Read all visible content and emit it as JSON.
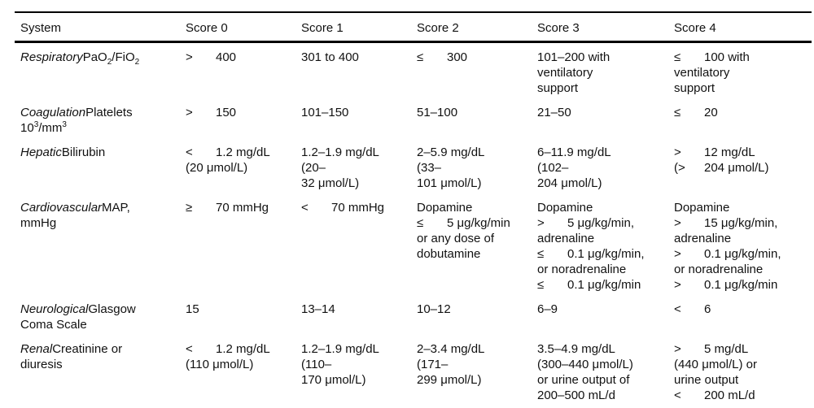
{
  "colors": {
    "background": "#ffffff",
    "text": "#111111",
    "rule": "#000000"
  },
  "table": {
    "columns": [
      "System",
      "Score 0",
      "Score 1",
      "Score 2",
      "Score 3",
      "Score 4"
    ],
    "rows": [
      {
        "system": {
          "em": "Respiratory",
          "segs": [
            [
              "PaO",
              ""
            ],
            [
              "2",
              "sub"
            ],
            [
              "/FiO",
              ""
            ],
            [
              "2",
              "sub"
            ]
          ]
        },
        "cells": [
          [
            [
              ">",
              "400"
            ]
          ],
          [
            [
              "",
              "301 to 400"
            ]
          ],
          [
            [
              "≤",
              "300"
            ]
          ],
          [
            [
              "",
              "101–200 with"
            ],
            [
              "",
              "ventilatory"
            ],
            [
              "",
              "support"
            ]
          ],
          [
            [
              "≤",
              "100 with"
            ],
            [
              "",
              "ventilatory"
            ],
            [
              "",
              "support"
            ]
          ]
        ]
      },
      {
        "system": {
          "em": "Coagulation",
          "segs": [
            [
              "Platelets 10",
              ""
            ],
            [
              "3",
              "sup"
            ],
            [
              "/mm",
              ""
            ],
            [
              "3",
              "sup"
            ]
          ]
        },
        "cells": [
          [
            [
              ">",
              "150"
            ]
          ],
          [
            [
              "",
              "101–150"
            ]
          ],
          [
            [
              "",
              "51–100"
            ]
          ],
          [
            [
              "",
              "21–50"
            ]
          ],
          [
            [
              "≤",
              "20"
            ]
          ]
        ]
      },
      {
        "system": {
          "em": "Hepatic",
          "segs": [
            [
              "Bilirubin",
              ""
            ]
          ]
        },
        "cells": [
          [
            [
              "<",
              "1.2 mg/dL"
            ],
            [
              "",
              "(20 μmol/L)"
            ]
          ],
          [
            [
              "",
              "1.2–1.9 mg/dL"
            ],
            [
              "",
              "(20–"
            ],
            [
              "",
              "32 μmol/L)"
            ]
          ],
          [
            [
              "",
              "2–5.9 mg/dL"
            ],
            [
              "",
              "(33–"
            ],
            [
              "",
              "101 μmol/L)"
            ]
          ],
          [
            [
              "",
              "6–11.9 mg/dL"
            ],
            [
              "",
              "(102–"
            ],
            [
              "",
              "204 μmol/L)"
            ]
          ],
          [
            [
              ">",
              "12 mg/dL"
            ],
            [
              "(>",
              "204 μmol/L)"
            ]
          ]
        ]
      },
      {
        "system": {
          "em": "Cardiovascular",
          "segs": [
            [
              "MAP, mmHg",
              ""
            ]
          ]
        },
        "cells": [
          [
            [
              "≥",
              "70 mmHg"
            ]
          ],
          [
            [
              "<",
              "70 mmHg"
            ]
          ],
          [
            [
              "",
              "Dopamine"
            ],
            [
              "≤",
              "5 μg/kg/min"
            ],
            [
              "",
              "or any dose of"
            ],
            [
              "",
              "dobutamine"
            ]
          ],
          [
            [
              "",
              "Dopamine"
            ],
            [
              ">",
              "5 μg/kg/min,"
            ],
            [
              "",
              "adrenaline"
            ],
            [
              "≤",
              "0.1 μg/kg/min,"
            ],
            [
              "",
              "or noradrenaline"
            ],
            [
              "≤",
              "0.1 μg/kg/min"
            ]
          ],
          [
            [
              "",
              "Dopamine"
            ],
            [
              ">",
              "15 μg/kg/min,"
            ],
            [
              "",
              "adrenaline"
            ],
            [
              ">",
              "0.1 μg/kg/min,"
            ],
            [
              "",
              "or noradrenaline"
            ],
            [
              ">",
              "0.1 μg/kg/min"
            ]
          ]
        ]
      },
      {
        "system": {
          "em": "Neurological",
          "segs": [
            [
              "Glasgow Coma Scale",
              ""
            ]
          ]
        },
        "cells": [
          [
            [
              "",
              "15"
            ]
          ],
          [
            [
              "",
              "13–14"
            ]
          ],
          [
            [
              "",
              "10–12"
            ]
          ],
          [
            [
              "",
              "6–9"
            ]
          ],
          [
            [
              "<",
              "6"
            ]
          ]
        ]
      },
      {
        "system": {
          "em": "Renal",
          "segs": [
            [
              "Creatinine or diuresis",
              ""
            ]
          ]
        },
        "cells": [
          [
            [
              "<",
              "1.2 mg/dL"
            ],
            [
              "",
              "(110 μmol/L)"
            ]
          ],
          [
            [
              "",
              "1.2–1.9 mg/dL"
            ],
            [
              "",
              "(110–"
            ],
            [
              "",
              "170 μmol/L)"
            ]
          ],
          [
            [
              "",
              "2–3.4 mg/dL"
            ],
            [
              "",
              "(171–"
            ],
            [
              "",
              "299 μmol/L)"
            ]
          ],
          [
            [
              "",
              "3.5–4.9 mg/dL"
            ],
            [
              "",
              "(300–440 μmol/L)"
            ],
            [
              "",
              "or urine output of"
            ],
            [
              "",
              "200–500 mL/d"
            ]
          ],
          [
            [
              ">",
              "5 mg/dL"
            ],
            [
              "",
              "(440 μmol/L) or"
            ],
            [
              "",
              "urine output"
            ],
            [
              "<",
              "200 mL/d"
            ]
          ]
        ]
      }
    ]
  }
}
